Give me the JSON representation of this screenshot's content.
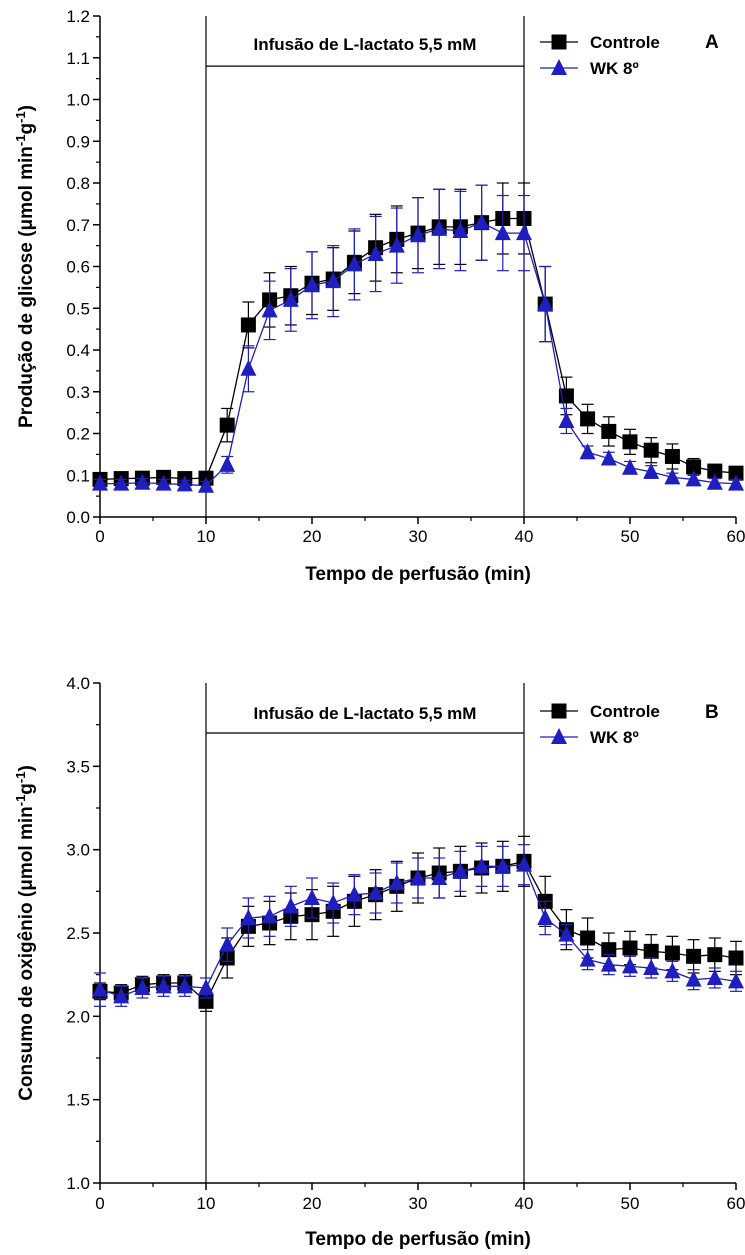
{
  "colors": {
    "controle": "#000000",
    "wk8": "#1f1fbf",
    "axis": "#000000"
  },
  "chart_data": [
    {
      "type": "line",
      "panel_letter": "A",
      "xlabel": "Tempo de perfusão (min)",
      "ylabel_main": "Produção de glicose (μmol min",
      "ylabel_sup1": "-1",
      "ylabel_mid": "g",
      "ylabel_sup2": "-1",
      "ylabel_end": ")",
      "xlim": [
        0,
        60
      ],
      "ylim": [
        0.0,
        1.2
      ],
      "xticks": [
        0,
        10,
        20,
        30,
        40,
        50,
        60
      ],
      "xtick_labels": [
        "0",
        "10",
        "20",
        "30",
        "40",
        "50",
        "60"
      ],
      "yticks": [
        0.0,
        0.1,
        0.2,
        0.3,
        0.4,
        0.5,
        0.6,
        0.7,
        0.8,
        0.9,
        1.0,
        1.1,
        1.2
      ],
      "ytick_labels": [
        "0.0",
        "0.1",
        "0.2",
        "0.3",
        "0.4",
        "0.5",
        "0.6",
        "0.7",
        "0.8",
        "0.9",
        "1.0",
        "1.1",
        "1.2"
      ],
      "vlines": [
        10,
        40
      ],
      "annotation": {
        "text": "Infusão de L-lactato 5,5 mM",
        "x_start": 10,
        "x_end": 40,
        "y": 1.08
      },
      "legend_position": "top-right",
      "x": [
        0,
        2,
        4,
        6,
        8,
        10,
        12,
        14,
        16,
        18,
        20,
        22,
        24,
        26,
        28,
        30,
        32,
        34,
        36,
        38,
        40,
        42,
        44,
        46,
        48,
        50,
        52,
        54,
        56,
        58,
        60
      ],
      "series": [
        {
          "name": "Controle",
          "marker": "square",
          "values": [
            0.09,
            0.092,
            0.093,
            0.095,
            0.092,
            0.093,
            0.22,
            0.46,
            0.52,
            0.53,
            0.56,
            0.57,
            0.61,
            0.645,
            0.665,
            0.68,
            0.695,
            0.695,
            0.705,
            0.715,
            0.715,
            0.51,
            0.29,
            0.235,
            0.205,
            0.18,
            0.16,
            0.145,
            0.12,
            0.11,
            0.105
          ],
          "errors": [
            0.01,
            0.01,
            0.01,
            0.01,
            0.01,
            0.015,
            0.04,
            0.055,
            0.065,
            0.07,
            0.075,
            0.075,
            0.075,
            0.08,
            0.08,
            0.085,
            0.09,
            0.09,
            0.09,
            0.085,
            0.085,
            0.09,
            0.045,
            0.035,
            0.035,
            0.03,
            0.03,
            0.03,
            0.02,
            0.015,
            0.015
          ]
        },
        {
          "name": "WK 8º",
          "marker": "triangle",
          "values": [
            0.08,
            0.08,
            0.082,
            0.08,
            0.078,
            0.075,
            0.125,
            0.355,
            0.495,
            0.52,
            0.555,
            0.565,
            0.605,
            0.63,
            0.65,
            0.675,
            0.69,
            0.685,
            0.705,
            0.68,
            0.68,
            0.51,
            0.23,
            0.155,
            0.14,
            0.118,
            0.108,
            0.095,
            0.09,
            0.082,
            0.08
          ],
          "errors": [
            0.01,
            0.01,
            0.01,
            0.01,
            0.01,
            0.01,
            0.02,
            0.055,
            0.07,
            0.075,
            0.08,
            0.085,
            0.085,
            0.09,
            0.09,
            0.09,
            0.095,
            0.095,
            0.09,
            0.09,
            0.09,
            0.09,
            0.03,
            0.015,
            0.015,
            0.015,
            0.015,
            0.01,
            0.01,
            0.01,
            0.01
          ]
        }
      ]
    },
    {
      "type": "line",
      "panel_letter": "B",
      "xlabel": "Tempo de perfusão (min)",
      "ylabel_main": "Consumo de oxigênio (μmol min",
      "ylabel_sup1": "-1",
      "ylabel_mid": "g",
      "ylabel_sup2": "-1",
      "ylabel_end": ")",
      "xlim": [
        0,
        60
      ],
      "ylim": [
        1.0,
        4.0
      ],
      "xticks": [
        0,
        10,
        20,
        30,
        40,
        50,
        60
      ],
      "xtick_labels": [
        "0",
        "10",
        "20",
        "30",
        "40",
        "50",
        "60"
      ],
      "yticks": [
        1.0,
        1.5,
        2.0,
        2.5,
        3.0,
        3.5,
        4.0
      ],
      "ytick_labels": [
        "1.0",
        "1.5",
        "2.0",
        "2.5",
        "3.0",
        "3.5",
        "4.0"
      ],
      "vlines": [
        10,
        40
      ],
      "annotation": {
        "text": "Infusão de L-lactato 5,5 mM",
        "x_start": 10,
        "x_end": 40,
        "y": 3.7
      },
      "legend_position": "top-right",
      "x": [
        0,
        2,
        4,
        6,
        8,
        10,
        12,
        14,
        16,
        18,
        20,
        22,
        24,
        26,
        28,
        30,
        32,
        34,
        36,
        38,
        40,
        42,
        44,
        46,
        48,
        50,
        52,
        54,
        56,
        58,
        60
      ],
      "series": [
        {
          "name": "Controle",
          "marker": "square",
          "values": [
            2.15,
            2.14,
            2.19,
            2.2,
            2.2,
            2.09,
            2.35,
            2.54,
            2.56,
            2.6,
            2.61,
            2.63,
            2.69,
            2.73,
            2.78,
            2.83,
            2.86,
            2.87,
            2.89,
            2.9,
            2.93,
            2.69,
            2.52,
            2.47,
            2.4,
            2.41,
            2.39,
            2.38,
            2.36,
            2.37,
            2.35
          ],
          "errors": [
            0.05,
            0.05,
            0.05,
            0.05,
            0.05,
            0.06,
            0.12,
            0.12,
            0.13,
            0.14,
            0.15,
            0.15,
            0.15,
            0.15,
            0.15,
            0.15,
            0.15,
            0.15,
            0.15,
            0.15,
            0.15,
            0.15,
            0.12,
            0.12,
            0.1,
            0.1,
            0.1,
            0.1,
            0.1,
            0.1,
            0.1
          ]
        },
        {
          "name": "WK 8º",
          "marker": "triangle",
          "values": [
            2.16,
            2.12,
            2.17,
            2.18,
            2.18,
            2.17,
            2.43,
            2.59,
            2.6,
            2.66,
            2.71,
            2.68,
            2.73,
            2.74,
            2.8,
            2.83,
            2.83,
            2.87,
            2.9,
            2.9,
            2.91,
            2.59,
            2.49,
            2.34,
            2.31,
            2.3,
            2.29,
            2.27,
            2.22,
            2.23,
            2.21
          ],
          "errors": [
            0.1,
            0.06,
            0.06,
            0.06,
            0.06,
            0.06,
            0.1,
            0.12,
            0.12,
            0.12,
            0.12,
            0.12,
            0.12,
            0.12,
            0.12,
            0.12,
            0.12,
            0.12,
            0.12,
            0.12,
            0.12,
            0.1,
            0.06,
            0.06,
            0.06,
            0.06,
            0.06,
            0.06,
            0.06,
            0.06,
            0.06
          ]
        }
      ]
    }
  ]
}
